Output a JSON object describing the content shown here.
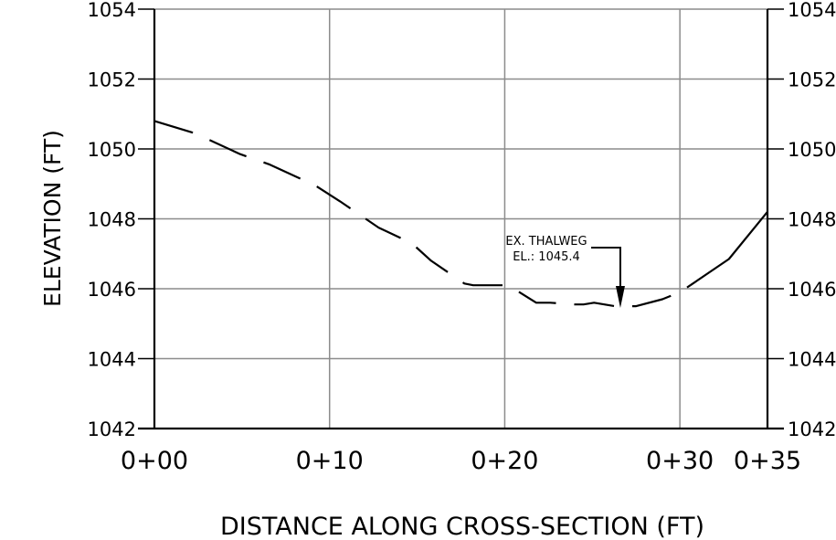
{
  "chart_data": {
    "type": "line",
    "title": "",
    "xlabel": "DISTANCE ALONG CROSS-SECTION (FT)",
    "ylabel": "ELEVATION  (FT)",
    "xlim": [
      0,
      35
    ],
    "ylim": [
      1042,
      1054
    ],
    "grid": true,
    "x_ticks": [
      {
        "value": 0,
        "label": "0+00"
      },
      {
        "value": 10,
        "label": "0+10"
      },
      {
        "value": 20,
        "label": "0+20"
      },
      {
        "value": 30,
        "label": "0+30"
      },
      {
        "value": 35,
        "label": "0+35"
      }
    ],
    "y_ticks": [
      {
        "value": 1042,
        "label": "1042"
      },
      {
        "value": 1044,
        "label": "1044"
      },
      {
        "value": 1046,
        "label": "1046"
      },
      {
        "value": 1048,
        "label": "1048"
      },
      {
        "value": 1050,
        "label": "1050"
      },
      {
        "value": 1052,
        "label": "1052"
      },
      {
        "value": 1054,
        "label": "1054"
      }
    ],
    "series": [
      {
        "style": "dashed",
        "x": [
          0,
          2.3,
          4.9,
          6.6,
          9.2,
          10.6,
          12.8,
          14.7,
          15.8,
          17.7,
          18.2,
          20.2,
          21.8,
          22.6,
          24.0,
          24.5,
          25.1,
          26.3,
          27.5,
          29.0,
          30.0,
          30.6
        ],
        "y": [
          1050.8,
          1050.45,
          1049.85,
          1049.55,
          1048.95,
          1048.5,
          1047.75,
          1047.3,
          1046.8,
          1046.15,
          1046.1,
          1046.1,
          1045.6,
          1045.6,
          1045.55,
          1045.55,
          1045.6,
          1045.5,
          1045.5,
          1045.7,
          1045.9,
          1046.1
        ]
      },
      {
        "style": "solid",
        "x": [
          30.6,
          32.8,
          35.0
        ],
        "y": [
          1046.1,
          1046.85,
          1048.2
        ]
      }
    ],
    "annotations": [
      {
        "lines": [
          "EX. THALWEG",
          "EL.: 1045.4"
        ],
        "point": {
          "x": 26.6,
          "y": 1045.45
        }
      }
    ]
  }
}
